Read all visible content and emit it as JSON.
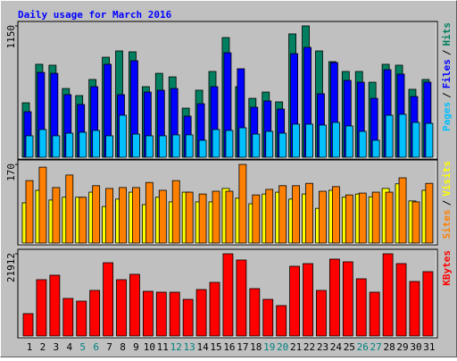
{
  "chart_data": [
    {
      "type": "bar",
      "title": "Daily usage for March 2016",
      "ylim": [
        0,
        1150
      ],
      "yticks": [
        1150
      ],
      "legend_separator": "/",
      "series": [
        {
          "name": "Hits",
          "color": "#008060",
          "values": [
            477,
            814,
            806,
            602,
            540,
            681,
            876,
            931,
            923,
            618,
            735,
            704,
            430,
            587,
            751,
            1048,
            618,
            516,
            571,
            485,
            1080,
            1150,
            931,
            837,
            751,
            751,
            657,
            814,
            806,
            595,
            681
          ]
        },
        {
          "name": "Files",
          "color": "#0000ff",
          "values": [
            399,
            743,
            735,
            548,
            462,
            618,
            814,
            548,
            845,
            571,
            587,
            602,
            360,
            469,
            618,
            915,
            775,
            438,
            493,
            422,
            907,
            962,
            556,
            829,
            673,
            657,
            516,
            767,
            728,
            532,
            657
          ]
        },
        {
          "name": "Pages",
          "color": "#00c0ff",
          "values": [
            188,
            243,
            188,
            211,
            219,
            235,
            188,
            368,
            203,
            188,
            188,
            196,
            196,
            149,
            243,
            235,
            258,
            203,
            227,
            211,
            290,
            290,
            282,
            305,
            274,
            227,
            149,
            368,
            376,
            305,
            297
          ]
        }
      ]
    },
    {
      "type": "bar",
      "ylim": [
        0,
        170
      ],
      "yticks": [
        170
      ],
      "legend_separator": "/",
      "series": [
        {
          "name": "Visits",
          "color": "#ffff00",
          "values": [
            87,
            114,
            93,
            99,
            99,
            110,
            79,
            95,
            110,
            83,
            99,
            89,
            110,
            89,
            89,
            118,
            97,
            85,
            106,
            110,
            95,
            106,
            75,
            114,
            99,
            106,
            100,
            118,
            128,
            91,
            114
          ]
        },
        {
          "name": "Sites",
          "color": "#ff8000",
          "values": [
            135,
            164,
            120,
            147,
            99,
            124,
            118,
            120,
            120,
            131,
            114,
            135,
            110,
            106,
            112,
            112,
            170,
            104,
            116,
            124,
            124,
            129,
            112,
            122,
            104,
            108,
            110,
            110,
            141,
            89,
            129
          ]
        }
      ]
    },
    {
      "type": "bar",
      "ylim": [
        0,
        21912
      ],
      "yticks": [
        21912
      ],
      "categories": [
        "1",
        "2",
        "3",
        "4",
        "5",
        "6",
        "7",
        "8",
        "9",
        "10",
        "11",
        "12",
        "13",
        "14",
        "15",
        "16",
        "17",
        "18",
        "19",
        "20",
        "21",
        "22",
        "23",
        "24",
        "25",
        "26",
        "27",
        "28",
        "29",
        "30",
        "31"
      ],
      "category_colors": [
        "#000000",
        "#000000",
        "#000000",
        "#000000",
        "#008080",
        "#008080",
        "#000000",
        "#000000",
        "#000000",
        "#000000",
        "#000000",
        "#008080",
        "#008080",
        "#000000",
        "#000000",
        "#000000",
        "#000000",
        "#000000",
        "#008080",
        "#008080",
        "#000000",
        "#000000",
        "#000000",
        "#000000",
        "#000000",
        "#008080",
        "#008080",
        "#000000",
        "#000000",
        "#000000",
        "#000000"
      ],
      "series": [
        {
          "name": "KBytes",
          "color": "#ff0000",
          "values": [
            5955,
            15007,
            16198,
            10004,
            9290,
            12148,
            19532,
            15007,
            16436,
            11910,
            11672,
            11672,
            9766,
            12386,
            14292,
            21912,
            20247,
            12625,
            9766,
            8099,
            18580,
            19294,
            12148,
            20485,
            19770,
            15245,
            11672,
            21912,
            19294,
            14530,
            17150
          ]
        }
      ]
    }
  ]
}
